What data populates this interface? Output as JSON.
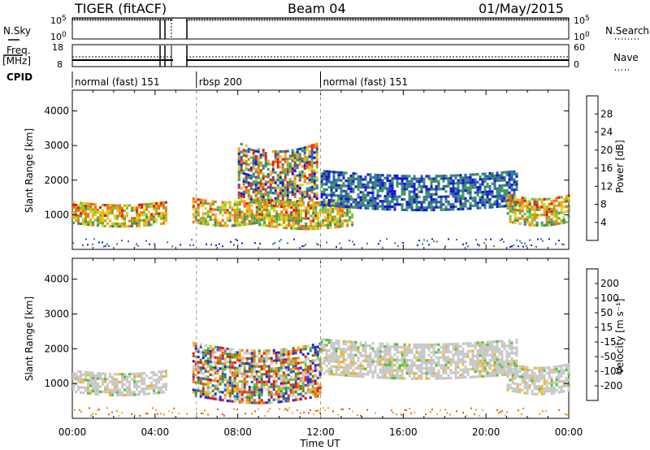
{
  "header": {
    "radar": "TIGER (fitACF)",
    "beam": "Beam 04",
    "date": "01/May/2015"
  },
  "strip_labels": {
    "nsky": "N.Sky",
    "nsearch": "N.Search",
    "freq_top": "Freq.",
    "freq_unit": "[MHz]",
    "nave": "Nave",
    "cpid": "CPID",
    "nsky_ticks": [
      "10^5",
      "10^0"
    ],
    "nsearch_ticks": [
      "10^5",
      "10^0"
    ],
    "freq_ticks": [
      "18",
      "8"
    ],
    "nave_ticks": [
      "60",
      "0"
    ]
  },
  "cpid_segments": [
    {
      "label": "normal (fast) 151",
      "start_hour": 0.0
    },
    {
      "label": "rbsp 200",
      "start_hour": 6.0
    },
    {
      "label": "normal (fast) 151",
      "start_hour": 12.0
    }
  ],
  "colors": {
    "power": [
      "#1515d8",
      "#2a5ab0",
      "#3a7c8a",
      "#3f9a55",
      "#77c236",
      "#d9d21e",
      "#f3a615",
      "#f26b10",
      "#e51a10"
    ],
    "velocity": [
      "#1d27c9",
      "#2d55c4",
      "#2e8f3b",
      "#56c03f",
      "#c8c8c8",
      "#c8c8c8",
      "#f4b21b",
      "#f28a14",
      "#ec5211",
      "#e0190d"
    ]
  },
  "chart_data": [
    {
      "type": "heatmap",
      "name": "Power",
      "xlabel": "",
      "ylabel": "Slant Range [km]",
      "xlim": [
        0,
        24
      ],
      "ylim": [
        0,
        4600
      ],
      "xticks": [
        "00:00",
        "04:00",
        "08:00",
        "12:00",
        "16:00",
        "20:00",
        "00:00"
      ],
      "yticks": [
        1000,
        2000,
        3000,
        4000
      ],
      "colorbar": {
        "label": "Power [dB]",
        "ticks": [
          4,
          8,
          12,
          16,
          20,
          24,
          28
        ],
        "range": [
          0,
          32
        ]
      },
      "echo_bands": [
        {
          "x": [
            0,
            4.5
          ],
          "y": [
            750,
            1400
          ],
          "level": "high"
        },
        {
          "x": [
            5.8,
            9.0
          ],
          "y": [
            800,
            1500
          ],
          "level": "high"
        },
        {
          "x": [
            8.0,
            11.8
          ],
          "y": [
            1500,
            3100
          ],
          "level": "mixed"
        },
        {
          "x": [
            9.0,
            13.5
          ],
          "y": [
            700,
            1500
          ],
          "level": "high"
        },
        {
          "x": [
            12.0,
            21.5
          ],
          "y": [
            1300,
            2300
          ],
          "level": "low"
        },
        {
          "x": [
            21.0,
            24.0
          ],
          "y": [
            800,
            1600
          ],
          "level": "high"
        }
      ]
    },
    {
      "type": "heatmap",
      "name": "Velocity",
      "xlabel": "Time UT",
      "ylabel": "Slant Range [km]",
      "xlim": [
        0,
        24
      ],
      "ylim": [
        0,
        4600
      ],
      "xticks": [
        "00:00",
        "04:00",
        "08:00",
        "12:00",
        "16:00",
        "20:00",
        "00:00"
      ],
      "yticks": [
        1000,
        2000,
        3000,
        4000
      ],
      "colorbar": {
        "label": "Velocity [m s⁻¹]",
        "ticks": [
          200,
          100,
          50,
          15,
          -15,
          -50,
          -100,
          -200
        ],
        "range": [
          -250,
          250
        ]
      },
      "echo_bands": [
        {
          "x": [
            0,
            4.5
          ],
          "y": [
            750,
            1400
          ],
          "level": "ground"
        },
        {
          "x": [
            5.8,
            12.0
          ],
          "y": [
            700,
            2200
          ],
          "level": "mixed"
        },
        {
          "x": [
            12.0,
            21.5
          ],
          "y": [
            1300,
            2300
          ],
          "level": "ground"
        },
        {
          "x": [
            21.0,
            24.0
          ],
          "y": [
            800,
            1600
          ],
          "level": "ground"
        }
      ]
    }
  ]
}
